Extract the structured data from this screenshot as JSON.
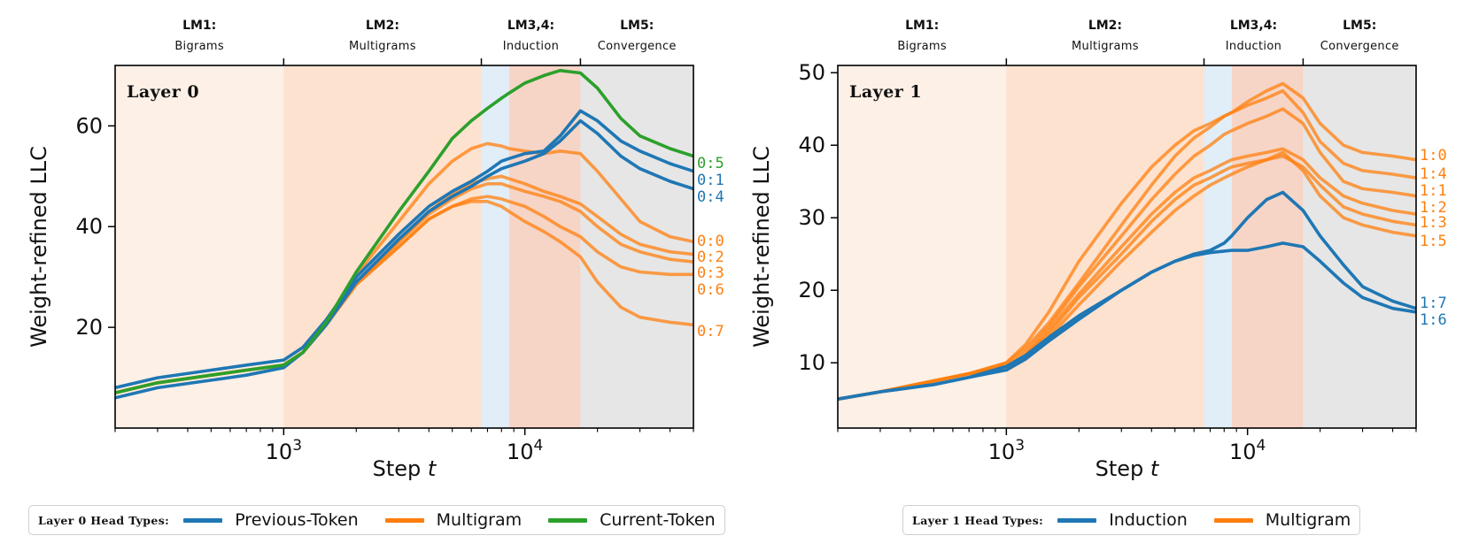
{
  "colors": {
    "blue": "#1f77b4",
    "orange": "#ff7f0e",
    "green": "#2ca02c",
    "stage_lm1": "#fdf0e6",
    "stage_lm2": "#fde2d0",
    "stage_lm3": "#e1edf7",
    "stage_lm4": "#f6d5c7",
    "stage_lm5": "#e6e6e6"
  },
  "stages": [
    {
      "top": "LM1:",
      "bottom": "Bigrams"
    },
    {
      "top": "LM2:",
      "bottom": "Multigrams"
    },
    {
      "top": "LM3,4:",
      "bottom": "Induction"
    },
    {
      "top": "LM5:",
      "bottom": "Convergence"
    }
  ],
  "legends": [
    {
      "title": "Layer 0 Head Types:",
      "items": [
        {
          "label": "Previous-Token",
          "color": "#1f77b4"
        },
        {
          "label": "Multigram",
          "color": "#ff7f0e"
        },
        {
          "label": "Current-Token",
          "color": "#2ca02c"
        }
      ]
    },
    {
      "title": "Layer 1 Head Types:",
      "items": [
        {
          "label": "Induction",
          "color": "#1f77b4"
        },
        {
          "label": "Multigram",
          "color": "#ff7f0e"
        }
      ]
    }
  ],
  "chart_data": [
    {
      "type": "line",
      "title": "Layer 0",
      "xlabel": "Step t",
      "ylabel": "Weight-refined LLC",
      "xscale": "log",
      "xlim": [
        200,
        50000
      ],
      "ylim": [
        0,
        72
      ],
      "yticks": [
        20,
        40,
        60
      ],
      "xticks": [
        1000,
        10000
      ],
      "xtick_labels": [
        "10^3",
        "10^4"
      ],
      "stage_boundaries": [
        200,
        1000,
        6600,
        8600,
        17000,
        50000
      ],
      "x": [
        200,
        300,
        500,
        700,
        1000,
        1200,
        1500,
        2000,
        3000,
        4000,
        5000,
        6000,
        7000,
        8000,
        8600,
        10000,
        12000,
        14000,
        17000,
        20000,
        25000,
        30000,
        40000,
        50000
      ],
      "series": [
        {
          "name": "0:5",
          "kind": "Current-Token",
          "color": "#2ca02c",
          "values": [
            7,
            9,
            10.5,
            11.5,
            12.5,
            15,
            21,
            31,
            43,
            51,
            57.5,
            61,
            63.5,
            65.5,
            66.5,
            68.5,
            70,
            71,
            70.5,
            67.5,
            61.5,
            58,
            55.5,
            54
          ]
        },
        {
          "name": "0:1",
          "kind": "Previous-Token",
          "color": "#1f77b4",
          "values": [
            8,
            10,
            11.5,
            12.5,
            13.5,
            16,
            21.5,
            30,
            38.5,
            44,
            47,
            49,
            51,
            53,
            53.5,
            54.5,
            55,
            58,
            63,
            61,
            57,
            55,
            52.5,
            51
          ]
        },
        {
          "name": "0:4",
          "kind": "Previous-Token",
          "color": "#1f77b4",
          "values": [
            6,
            8,
            9.5,
            10.5,
            12,
            15,
            20.5,
            29,
            37.5,
            43,
            46,
            48,
            50,
            51.5,
            52,
            53,
            54.5,
            57,
            61,
            58.5,
            54,
            51.5,
            49,
            47.5
          ]
        },
        {
          "name": "0:0",
          "kind": "Multigram",
          "color": "#ff7f0e",
          "values": [
            7,
            9,
            10.5,
            11.5,
            12.5,
            15,
            21,
            30.5,
            41,
            48.5,
            53,
            55.5,
            56.5,
            56,
            55.5,
            55,
            54.5,
            55,
            54.5,
            51,
            45.5,
            41,
            38,
            37
          ]
        },
        {
          "name": "0:2",
          "kind": "Multigram",
          "color": "#ff7f0e",
          "values": [
            7,
            9,
            10.5,
            11.5,
            12.5,
            15,
            20.5,
            29,
            37,
            43,
            46.5,
            48.5,
            49.5,
            50,
            49.5,
            48.5,
            47,
            46,
            44.5,
            42,
            38.5,
            36.5,
            35,
            34.5
          ]
        },
        {
          "name": "0:3",
          "kind": "Multigram",
          "color": "#ff7f0e",
          "values": [
            7,
            9,
            10.5,
            11.5,
            12.5,
            15,
            20.5,
            29,
            37,
            42.5,
            45.5,
            47.5,
            48.5,
            48.5,
            48,
            47,
            46,
            45,
            43,
            40,
            36.5,
            35,
            33.5,
            33
          ]
        },
        {
          "name": "0:6",
          "kind": "Multigram",
          "color": "#ff7f0e",
          "values": [
            7,
            9,
            10.5,
            11.5,
            12.5,
            15,
            20.5,
            28.5,
            36,
            41.5,
            44,
            45.5,
            46,
            45.5,
            45,
            44,
            42,
            40,
            38,
            35,
            32,
            31,
            30.5,
            30.5
          ]
        },
        {
          "name": "0:7",
          "kind": "Multigram",
          "color": "#ff7f0e",
          "values": [
            7,
            9,
            10.5,
            11.5,
            12.5,
            15,
            20.5,
            28.5,
            36,
            41.5,
            44,
            45,
            45,
            44,
            43,
            41,
            39,
            37,
            34,
            29,
            24,
            22,
            21,
            20.5
          ]
        }
      ]
    },
    {
      "type": "line",
      "title": "Layer 1",
      "xlabel": "Step t",
      "ylabel": "Weight-refined LLC",
      "xscale": "log",
      "xlim": [
        200,
        50000
      ],
      "ylim": [
        1,
        51
      ],
      "yticks": [
        10,
        20,
        30,
        40,
        50
      ],
      "xticks": [
        1000,
        10000
      ],
      "xtick_labels": [
        "10^3",
        "10^4"
      ],
      "stage_boundaries": [
        200,
        1000,
        6600,
        8600,
        17000,
        50000
      ],
      "x": [
        200,
        300,
        500,
        700,
        1000,
        1200,
        1500,
        2000,
        3000,
        4000,
        5000,
        6000,
        7000,
        8000,
        8600,
        10000,
        12000,
        14000,
        17000,
        20000,
        25000,
        30000,
        40000,
        50000
      ],
      "series": [
        {
          "name": "1:0",
          "kind": "Multigram",
          "color": "#ff7f0e",
          "values": [
            5,
            6,
            7.5,
            8.5,
            10,
            12,
            15.5,
            21,
            29,
            34.5,
            38.5,
            41,
            42.5,
            44,
            44.5,
            46,
            47.5,
            48.5,
            46.5,
            43,
            40,
            39,
            38.5,
            38
          ]
        },
        {
          "name": "1:4",
          "kind": "Multigram",
          "color": "#ff7f0e",
          "values": [
            5,
            6,
            7.5,
            8.5,
            10,
            12.5,
            17,
            24,
            32,
            37,
            40,
            42,
            43,
            44,
            44.5,
            45.5,
            46.5,
            47.5,
            44.5,
            40.5,
            37.5,
            36.5,
            36,
            35.5
          ]
        },
        {
          "name": "1:1",
          "kind": "Multigram",
          "color": "#ff7f0e",
          "values": [
            5,
            6,
            7.5,
            8.5,
            9.5,
            11.5,
            15,
            20.5,
            27.5,
            32.5,
            36,
            38.5,
            40,
            41.5,
            42,
            43,
            44,
            45,
            43,
            39,
            35,
            34,
            33.5,
            33
          ]
        },
        {
          "name": "1:2",
          "kind": "Multigram",
          "color": "#ff7f0e",
          "values": [
            5,
            6,
            7.5,
            8.5,
            9.5,
            11,
            14.5,
            19.5,
            26,
            30.5,
            33.5,
            35.5,
            36.5,
            37.5,
            38,
            38.5,
            39,
            39.5,
            38,
            35.5,
            33,
            32,
            31,
            30.5
          ]
        },
        {
          "name": "1:3",
          "kind": "Multigram",
          "color": "#ff7f0e",
          "values": [
            5,
            6,
            7.5,
            8.5,
            9.5,
            11,
            14,
            19,
            25,
            29.5,
            32.5,
            34.5,
            35.5,
            36.5,
            37,
            37.5,
            38,
            38.5,
            37,
            34.5,
            31.5,
            30.5,
            29.5,
            29
          ]
        },
        {
          "name": "1:5",
          "kind": "Multigram",
          "color": "#ff7f0e",
          "values": [
            5,
            6,
            7.5,
            8.5,
            9,
            10.5,
            13.5,
            18,
            24,
            28,
            31,
            33,
            34.5,
            35.5,
            36,
            37,
            38,
            39,
            36.5,
            33,
            30,
            29,
            28,
            27.5
          ]
        },
        {
          "name": "1:7",
          "kind": "Induction",
          "color": "#1f77b4",
          "values": [
            5,
            6,
            7,
            8,
            9.5,
            11,
            13.5,
            16.5,
            20,
            22.5,
            24,
            25,
            25.5,
            26.5,
            27.5,
            30,
            32.5,
            33.5,
            31,
            27.5,
            23.5,
            20.5,
            18.5,
            17.5
          ]
        },
        {
          "name": "1:6",
          "kind": "Induction",
          "color": "#1f77b4",
          "values": [
            5,
            6,
            7,
            8,
            9,
            10.5,
            13,
            16,
            20,
            22.5,
            24,
            24.8,
            25.2,
            25.4,
            25.5,
            25.5,
            26,
            26.5,
            26,
            24,
            21,
            19,
            17.5,
            17
          ]
        }
      ]
    }
  ]
}
